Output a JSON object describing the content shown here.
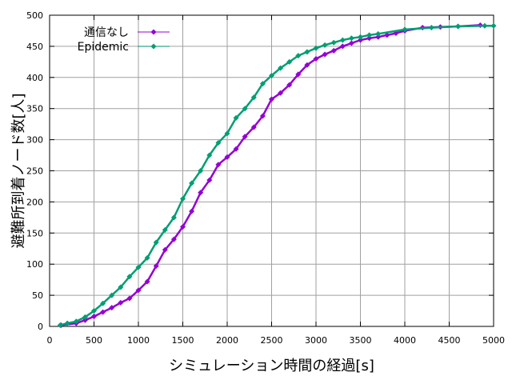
{
  "chart_data": {
    "type": "line",
    "title": "",
    "xlabel": "シミュレーション時間の経過[s]",
    "ylabel": "避難所到着ノード数[人]",
    "xlim": [
      0,
      5000
    ],
    "ylim": [
      0,
      500
    ],
    "xticks": [
      "0",
      "500",
      "1000",
      "1500",
      "2000",
      "2500",
      "3000",
      "3500",
      "4000",
      "4500",
      "5000"
    ],
    "yticks": [
      "0",
      "50",
      "100",
      "150",
      "200",
      "250",
      "300",
      "350",
      "400",
      "450",
      "500"
    ],
    "grid": true,
    "legend_position": "top-left",
    "series": [
      {
        "name": "通信なし",
        "color": "#9400d3",
        "marker": "diamond",
        "x": [
          130,
          300,
          400,
          500,
          600,
          700,
          800,
          900,
          1000,
          1100,
          1200,
          1300,
          1400,
          1500,
          1600,
          1700,
          1800,
          1900,
          2000,
          2100,
          2200,
          2300,
          2400,
          2500,
          2600,
          2700,
          2800,
          2900,
          3000,
          3100,
          3200,
          3300,
          3400,
          3500,
          3600,
          3700,
          3800,
          3900,
          4000,
          4200,
          4400,
          4600,
          4850
        ],
        "y": [
          2,
          5,
          10,
          16,
          23,
          30,
          38,
          45,
          58,
          72,
          97,
          123,
          140,
          160,
          185,
          215,
          235,
          260,
          272,
          285,
          305,
          320,
          338,
          365,
          375,
          388,
          405,
          420,
          430,
          437,
          443,
          450,
          455,
          460,
          463,
          465,
          468,
          471,
          475,
          480,
          481,
          482,
          484
        ]
      },
      {
        "name": "Epidemic",
        "color": "#009e73",
        "marker": "diamond",
        "x": [
          120,
          200,
          300,
          400,
          500,
          600,
          700,
          800,
          900,
          1000,
          1100,
          1200,
          1300,
          1400,
          1500,
          1600,
          1700,
          1800,
          1900,
          2000,
          2100,
          2200,
          2300,
          2400,
          2500,
          2600,
          2700,
          2800,
          2900,
          3000,
          3100,
          3200,
          3300,
          3400,
          3500,
          3600,
          3700,
          4000,
          4300,
          4600,
          4900,
          5000
        ],
        "y": [
          2,
          5,
          8,
          15,
          25,
          37,
          50,
          63,
          80,
          95,
          110,
          135,
          155,
          175,
          205,
          230,
          250,
          275,
          295,
          310,
          335,
          350,
          368,
          390,
          403,
          415,
          425,
          435,
          441,
          447,
          452,
          456,
          460,
          463,
          465,
          468,
          470,
          477,
          480,
          482,
          483,
          483
        ]
      }
    ]
  }
}
